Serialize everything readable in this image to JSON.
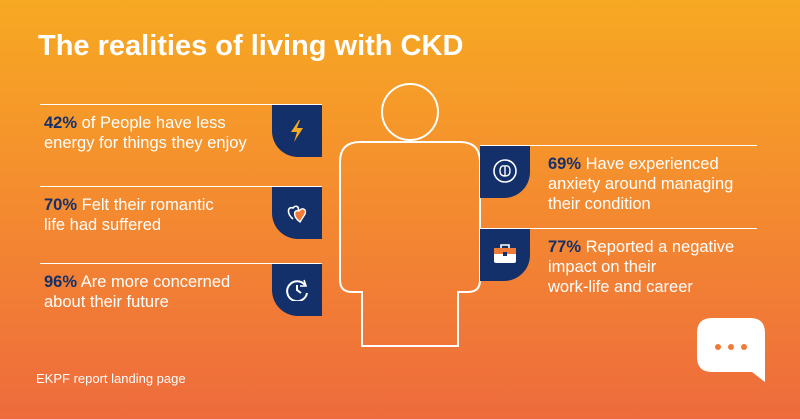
{
  "header": {
    "title": "The realities of living with CKD"
  },
  "left_items": [
    {
      "percent": "42%",
      "lines": [
        "of People have less",
        "energy for things they enjoy"
      ]
    },
    {
      "percent": "70%",
      "lines": [
        "Felt their romantic",
        "life had suffered"
      ]
    },
    {
      "percent": "96%",
      "lines": [
        "Are more concerned",
        "about their future"
      ]
    }
  ],
  "right_items": [
    {
      "percent": "69%",
      "lines": [
        "Have experienced",
        "anxiety around managing",
        "their condition"
      ]
    },
    {
      "percent": "77%",
      "lines": [
        "Reported a negative",
        "impact on their",
        "work-life and career"
      ]
    }
  ],
  "footer": {
    "text": "EKPF report landing page"
  }
}
